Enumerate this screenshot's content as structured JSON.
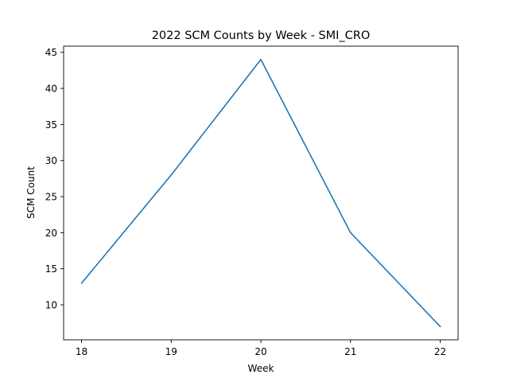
{
  "chart_data": {
    "type": "line",
    "title": "2022 SCM Counts by Week - SMI_CRO",
    "xlabel": "Week",
    "ylabel": "SCM Count",
    "x": [
      18,
      19,
      20,
      21,
      22
    ],
    "series": [
      {
        "values": [
          13,
          28,
          44,
          20,
          7
        ],
        "color": "#1f77b4"
      }
    ],
    "xticks": [
      18,
      19,
      20,
      21,
      22
    ],
    "yticks": [
      10,
      15,
      20,
      25,
      30,
      35,
      40,
      45
    ],
    "xlim": [
      17.8,
      22.2
    ],
    "ylim": [
      5.15,
      45.85
    ],
    "grid": false,
    "legend": "none"
  }
}
